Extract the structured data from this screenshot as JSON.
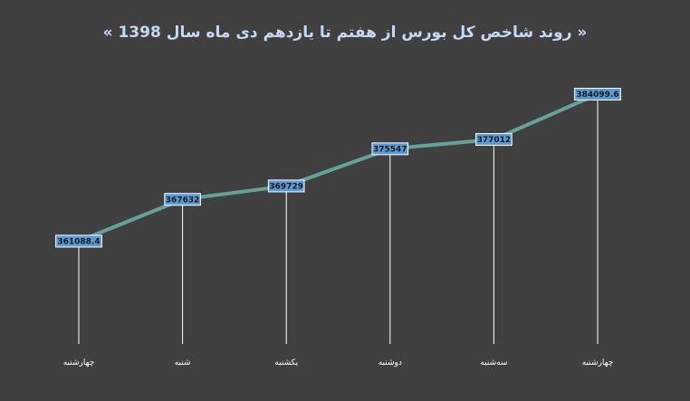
{
  "chart_data": {
    "type": "line",
    "title": "« روند شاخص کل بورس از هفتم تا یازدهم دی ماه سال 1398 »",
    "categories": [
      "چهارشنبه",
      "شنبه",
      "یکشنبه",
      "دوشنبه",
      "سه‌شنبه",
      "چهارشنبه"
    ],
    "series": [
      {
        "values": [
          361088.4,
          367632,
          369729,
          375547,
          377012,
          384099.6
        ],
        "labels": [
          "361088.4",
          "367632",
          "369729",
          "375547",
          "377012",
          "384099.6"
        ]
      }
    ],
    "xlabel": "",
    "ylabel": "",
    "ylim": [
      345000,
      386000
    ],
    "grid": false,
    "legend": "none",
    "colors": {
      "background": "#404040",
      "line_outer": "#5b9bd5",
      "line_inner": "#70ad47",
      "label_box": "#5b9bd5",
      "title": "#c6d9f1",
      "drop_line": "#ffffff"
    }
  }
}
